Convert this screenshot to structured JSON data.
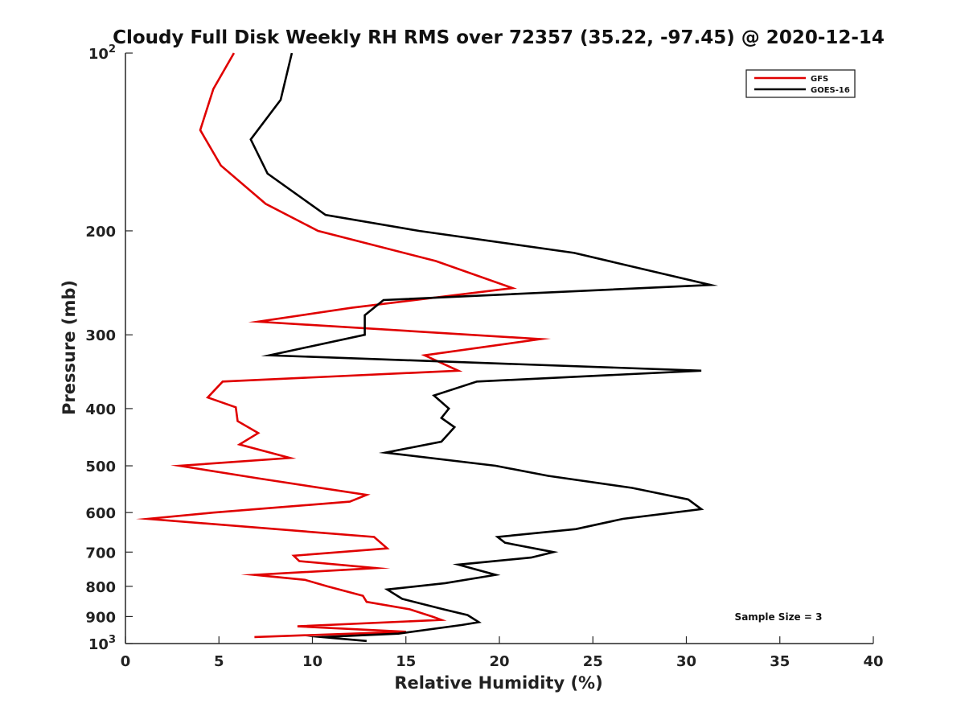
{
  "colors": {
    "GFS": "#e00000",
    "GOES-16": "#000000"
  },
  "chart_data": {
    "type": "line",
    "title": "Cloudy Full Disk Weekly RH RMS over 72357 (35.22, -97.45) @ 2020-12-14",
    "xlabel": "Relative Humidity (%)",
    "ylabel": "Pressure (mb)",
    "xlim": [
      0,
      40
    ],
    "ylim": [
      100,
      1000
    ],
    "yscale": "log",
    "y_reversed": true,
    "grid": false,
    "legend_position": "top-right",
    "x_ticks": [
      "0",
      "5",
      "10",
      "15",
      "20",
      "25",
      "30",
      "35",
      "40"
    ],
    "y_ticks": [
      {
        "value": 100,
        "base": "10",
        "exp": "2"
      },
      {
        "value": 200,
        "label": "200"
      },
      {
        "value": 300,
        "label": "300"
      },
      {
        "value": 400,
        "label": "400"
      },
      {
        "value": 500,
        "label": "500"
      },
      {
        "value": 600,
        "label": "600"
      },
      {
        "value": 700,
        "label": "700"
      },
      {
        "value": 800,
        "label": "800"
      },
      {
        "value": 900,
        "label": "900"
      },
      {
        "value": 1000,
        "base": "10",
        "exp": "3"
      }
    ],
    "annotation": "Sample Size = 3",
    "series": [
      {
        "name": "GFS",
        "color": "#e00000",
        "points": [
          [
            5.8,
            100
          ],
          [
            4.7,
            115
          ],
          [
            4.0,
            135
          ],
          [
            5.1,
            155
          ],
          [
            7.5,
            180
          ],
          [
            10.3,
            200
          ],
          [
            16.6,
            225
          ],
          [
            20.7,
            250
          ],
          [
            12.1,
            270
          ],
          [
            7.1,
            285
          ],
          [
            22.2,
            305
          ],
          [
            16.0,
            325
          ],
          [
            17.8,
            345
          ],
          [
            5.2,
            360
          ],
          [
            4.4,
            383
          ],
          [
            5.9,
            398
          ],
          [
            6.0,
            420
          ],
          [
            7.1,
            440
          ],
          [
            6.1,
            460
          ],
          [
            8.8,
            485
          ],
          [
            2.9,
            500
          ],
          [
            7.1,
            525
          ],
          [
            12.9,
            560
          ],
          [
            12.0,
            575
          ],
          [
            4.7,
            600
          ],
          [
            1.2,
            615
          ],
          [
            13.3,
            660
          ],
          [
            14.0,
            690
          ],
          [
            9.0,
            710
          ],
          [
            9.3,
            725
          ],
          [
            13.4,
            745
          ],
          [
            6.9,
            765
          ],
          [
            9.6,
            780
          ],
          [
            10.8,
            800
          ],
          [
            12.7,
            830
          ],
          [
            12.9,
            850
          ],
          [
            15.2,
            875
          ],
          [
            16.4,
            900
          ],
          [
            16.9,
            912
          ],
          [
            9.2,
            935
          ],
          [
            15.0,
            955
          ],
          [
            6.9,
            975
          ]
        ]
      },
      {
        "name": "GOES-16",
        "color": "#000000",
        "points": [
          [
            8.9,
            100
          ],
          [
            8.3,
            120
          ],
          [
            6.7,
            140
          ],
          [
            7.6,
            160
          ],
          [
            10.7,
            188
          ],
          [
            15.7,
            200
          ],
          [
            24.0,
            218
          ],
          [
            31.3,
            247
          ],
          [
            13.8,
            262
          ],
          [
            12.8,
            278
          ],
          [
            12.8,
            300
          ],
          [
            7.7,
            325
          ],
          [
            30.8,
            345
          ],
          [
            18.8,
            360
          ],
          [
            16.5,
            380
          ],
          [
            17.3,
            400
          ],
          [
            16.9,
            415
          ],
          [
            17.6,
            430
          ],
          [
            16.9,
            455
          ],
          [
            13.9,
            475
          ],
          [
            19.8,
            500
          ],
          [
            22.6,
            520
          ],
          [
            27.1,
            545
          ],
          [
            30.1,
            570
          ],
          [
            30.8,
            592
          ],
          [
            26.6,
            615
          ],
          [
            24.1,
            640
          ],
          [
            19.9,
            660
          ],
          [
            20.3,
            675
          ],
          [
            22.9,
            700
          ],
          [
            21.7,
            715
          ],
          [
            17.8,
            735
          ],
          [
            19.8,
            765
          ],
          [
            17.1,
            790
          ],
          [
            14.0,
            810
          ],
          [
            14.8,
            840
          ],
          [
            17.0,
            875
          ],
          [
            18.3,
            895
          ],
          [
            18.9,
            920
          ],
          [
            18.0,
            930
          ],
          [
            14.6,
            962
          ],
          [
            10.5,
            975
          ],
          [
            12.9,
            990
          ]
        ]
      }
    ]
  }
}
